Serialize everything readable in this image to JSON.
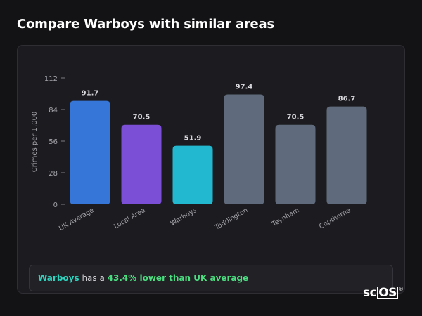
{
  "page": {
    "title": "Compare Warboys with similar areas"
  },
  "chart_data": {
    "type": "bar",
    "title": "",
    "xlabel": "",
    "ylabel": "Crimes per 1,000",
    "ylim": [
      0,
      112
    ],
    "yticks": [
      0,
      28,
      56,
      84,
      112
    ],
    "grid": false,
    "categories": [
      "UK Average",
      "Local Area",
      "Warboys",
      "Toddington",
      "Teynham",
      "Copthorne"
    ],
    "values": [
      91.7,
      70.5,
      51.9,
      97.4,
      70.5,
      86.7
    ],
    "value_labels": [
      "91.7",
      "70.5",
      "51.9",
      "97.4",
      "70.5",
      "86.7"
    ],
    "colors": [
      "#3676d9",
      "#7b4fd6",
      "#22b8cf",
      "#5f6b7d",
      "#5f6b7d",
      "#5f6b7d"
    ]
  },
  "summary": {
    "area": "Warboys",
    "text_mid": "has a",
    "diff": "43.4% lower than UK average"
  },
  "branding": {
    "logo_plain": "sc",
    "logo_boxed": "OS",
    "logo_reg": "®"
  }
}
